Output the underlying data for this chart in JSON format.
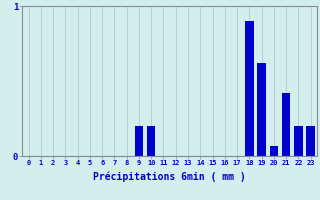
{
  "hours": [
    0,
    1,
    2,
    3,
    4,
    5,
    6,
    7,
    8,
    9,
    10,
    11,
    12,
    13,
    14,
    15,
    16,
    17,
    18,
    19,
    20,
    21,
    22,
    23
  ],
  "values": [
    0,
    0,
    0,
    0,
    0,
    0,
    0,
    0,
    0,
    0.2,
    0.2,
    0,
    0,
    0,
    0,
    0,
    0,
    0,
    0.9,
    0.62,
    0.07,
    0.42,
    0.2,
    0.2
  ],
  "bar_color": "#0000cc",
  "background_color": "#d4eeee",
  "grid_color": "#b0cccc",
  "axis_color": "#888899",
  "text_color": "#0000cc",
  "xlabel": "Précipitations 6min ( mm )",
  "ylim": [
    0,
    1.0
  ],
  "yticks": [
    0,
    1
  ],
  "xlim": [
    -0.5,
    23.5
  ]
}
